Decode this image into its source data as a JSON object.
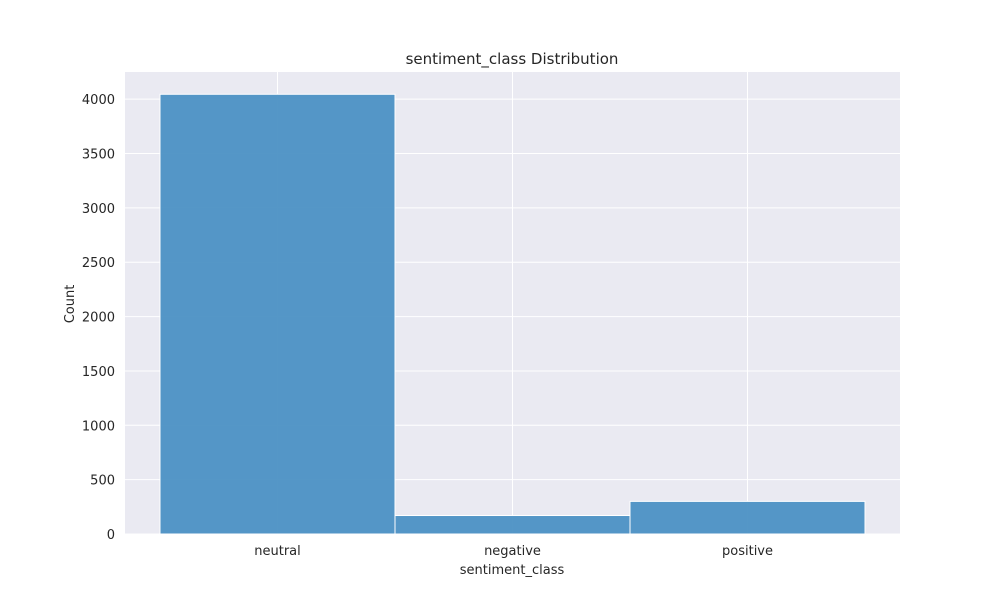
{
  "chart_data": {
    "type": "bar",
    "title": "sentiment_class Distribution",
    "xlabel": "sentiment_class",
    "ylabel": "Count",
    "categories": [
      "neutral",
      "negative",
      "positive"
    ],
    "values": [
      4045,
      170,
      300
    ],
    "ylim": [
      0,
      4250
    ],
    "yticks": [
      0,
      500,
      1000,
      1500,
      2000,
      2500,
      3000,
      3500,
      4000
    ],
    "grid": true,
    "legend": "none",
    "colors": {
      "bar": "#4c91c4",
      "bar_edge": "#ffffff",
      "plot_background": "#eaeaf2",
      "grid": "#ffffff",
      "text": "#262626"
    }
  }
}
